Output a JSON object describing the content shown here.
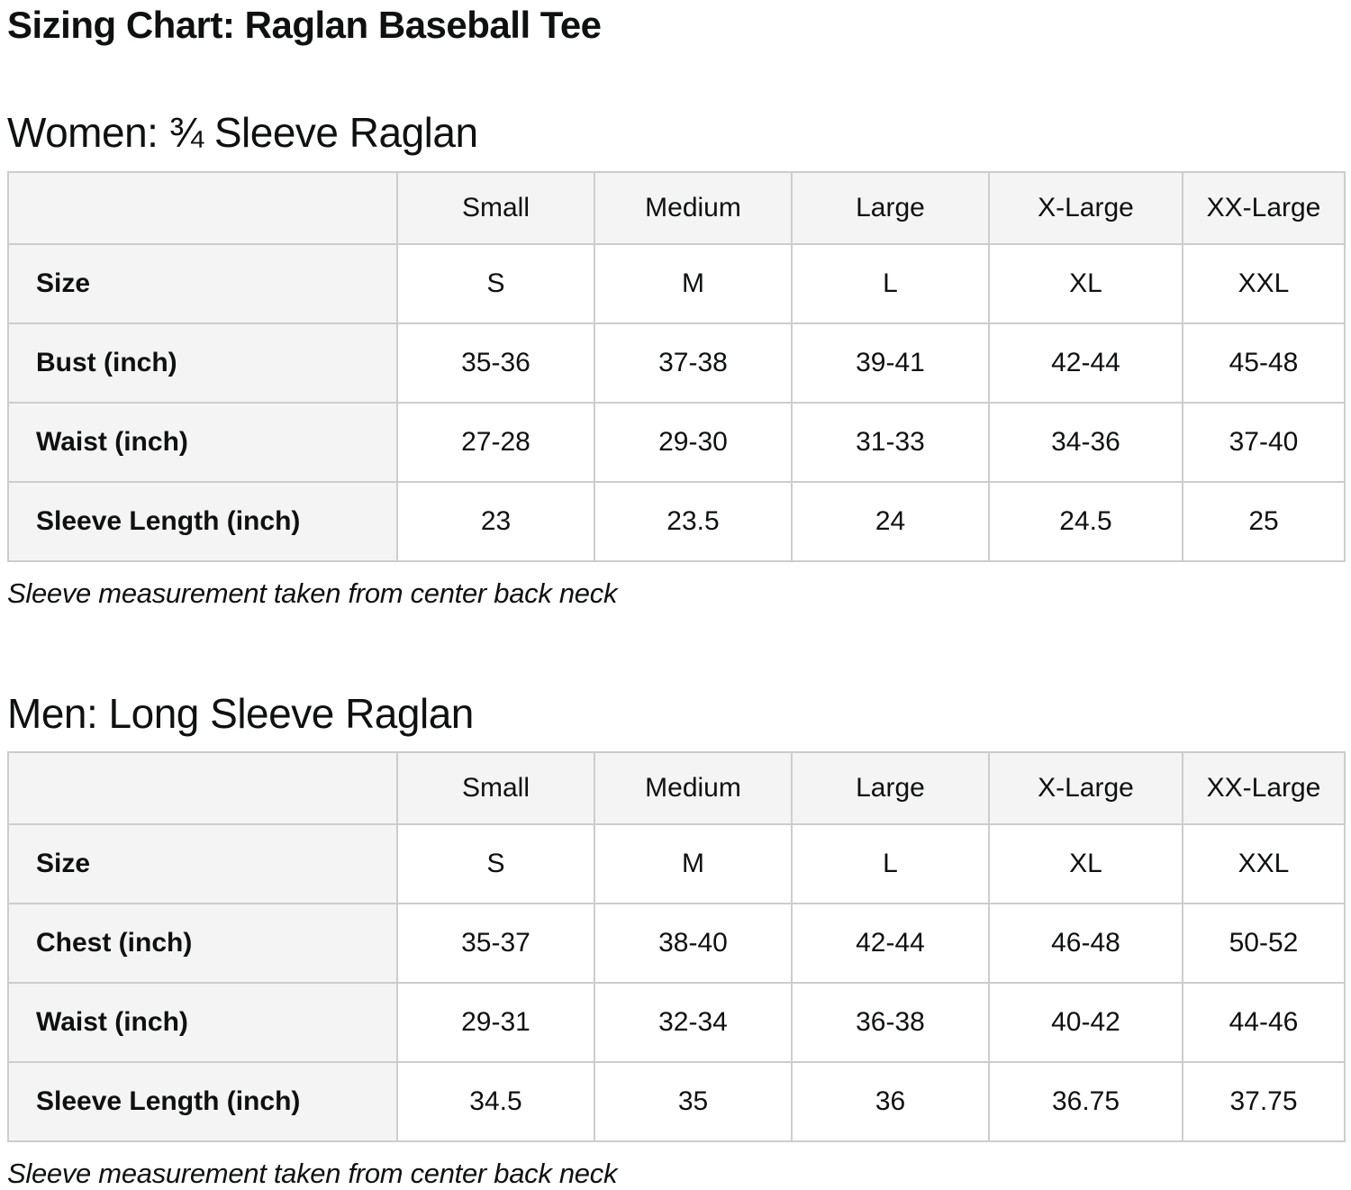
{
  "page": {
    "title": "Sizing Chart: Raglan Baseball Tee"
  },
  "colors": {
    "text": "#0f1111",
    "cellbg": "#f4f4f4",
    "border": "#cdcdcd",
    "databg": "#ffffff"
  },
  "sections": [
    {
      "heading": "Women: ¾ Sleeve Raglan",
      "columns": [
        "Small",
        "Medium",
        "Large",
        "X-Large",
        "XX-Large"
      ],
      "rows": [
        {
          "label": "Size",
          "values": [
            "S",
            "M",
            "L",
            "XL",
            "XXL"
          ]
        },
        {
          "label": "Bust (inch)",
          "values": [
            "35-36",
            "37-38",
            "39-41",
            "42-44",
            "45-48"
          ]
        },
        {
          "label": "Waist (inch)",
          "values": [
            "27-28",
            "29-30",
            "31-33",
            "34-36",
            "37-40"
          ]
        },
        {
          "label": "Sleeve Length (inch)",
          "values": [
            "23",
            "23.5",
            "24",
            "24.5",
            "25"
          ]
        }
      ],
      "note": "Sleeve measurement taken from center back neck"
    },
    {
      "heading": "Men: Long Sleeve Raglan",
      "columns": [
        "Small",
        "Medium",
        "Large",
        "X-Large",
        "XX-Large"
      ],
      "rows": [
        {
          "label": "Size",
          "values": [
            "S",
            "M",
            "L",
            "XL",
            "XXL"
          ]
        },
        {
          "label": "Chest (inch)",
          "values": [
            "35-37",
            "38-40",
            "42-44",
            "46-48",
            "50-52"
          ]
        },
        {
          "label": "Waist (inch)",
          "values": [
            "29-31",
            "32-34",
            "36-38",
            "40-42",
            "44-46"
          ]
        },
        {
          "label": "Sleeve Length (inch)",
          "values": [
            "34.5",
            "35",
            "36",
            "36.75",
            "37.75"
          ]
        }
      ],
      "note": "Sleeve measurement taken from center back neck"
    }
  ]
}
